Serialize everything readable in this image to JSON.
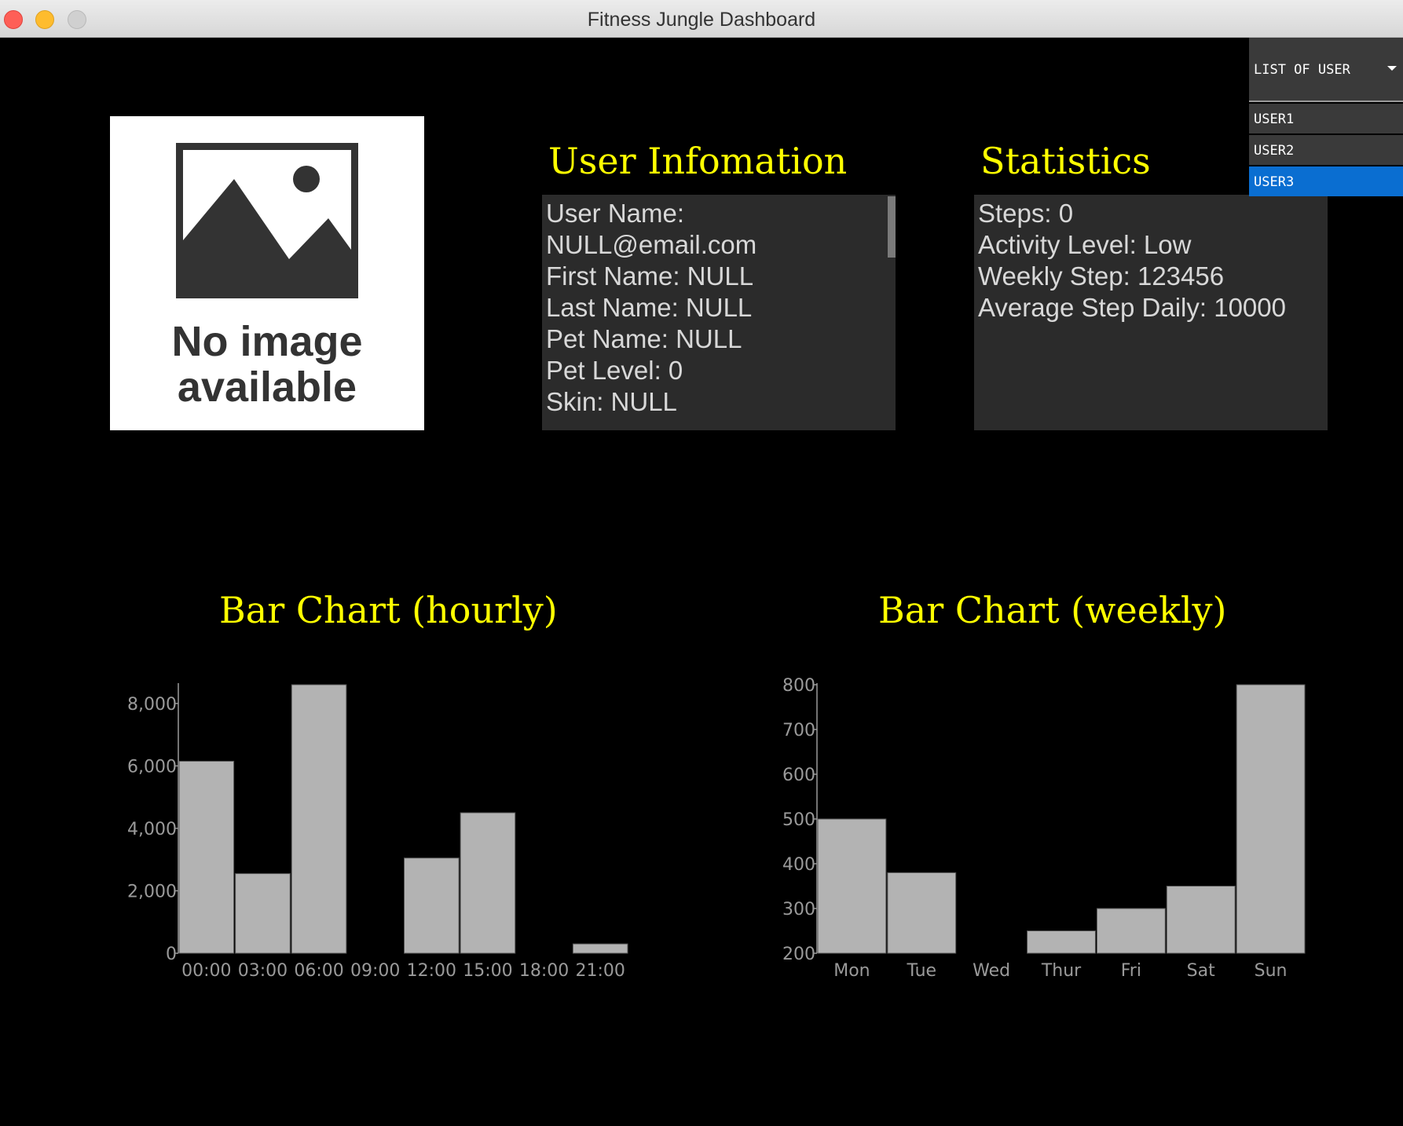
{
  "window": {
    "title": "Fitness Jungle Dashboard"
  },
  "placeholder_image": {
    "line1": "No image",
    "line2": "available"
  },
  "user_info": {
    "heading": "User Infomation",
    "lines": [
      "User Name:",
      "NULL@email.com",
      "First Name: NULL",
      "Last Name: NULL",
      "Pet Name: NULL",
      "Pet Level: 0",
      "Skin: NULL"
    ]
  },
  "statistics": {
    "heading": "Statistics",
    "lines": [
      "Steps: 0",
      "Activity Level: Low",
      "Weekly Step: 123456",
      "Average Step Daily: 10000"
    ]
  },
  "user_dropdown": {
    "label": "LIST OF USER",
    "items": [
      "USER1",
      "USER2",
      "USER3"
    ],
    "selected": "USER3"
  },
  "chart_data": [
    {
      "type": "bar",
      "title": "Bar Chart (hourly)",
      "categories": [
        "00:00",
        "03:00",
        "06:00",
        "09:00",
        "12:00",
        "15:00",
        "18:00",
        "21:00"
      ],
      "values": [
        6150,
        2550,
        8600,
        0,
        3050,
        4500,
        0,
        300
      ],
      "ylim": [
        0,
        8600
      ],
      "yticks": [
        0,
        2000,
        4000,
        6000,
        8000
      ],
      "ytick_labels": [
        "0",
        "2,000",
        "4,000",
        "6,000",
        "8,000"
      ],
      "grid": false
    },
    {
      "type": "bar",
      "title": "Bar Chart (weekly)",
      "categories": [
        "Mon",
        "Tue",
        "Wed",
        "Thur",
        "Fri",
        "Sat",
        "Sun"
      ],
      "values": [
        500,
        380,
        200,
        250,
        300,
        350,
        800
      ],
      "ylim": [
        200,
        800
      ],
      "yticks": [
        200,
        300,
        400,
        500,
        600,
        700,
        800
      ],
      "ytick_labels": [
        "200",
        "300",
        "400",
        "500",
        "600",
        "700",
        "800"
      ],
      "grid": false
    }
  ]
}
